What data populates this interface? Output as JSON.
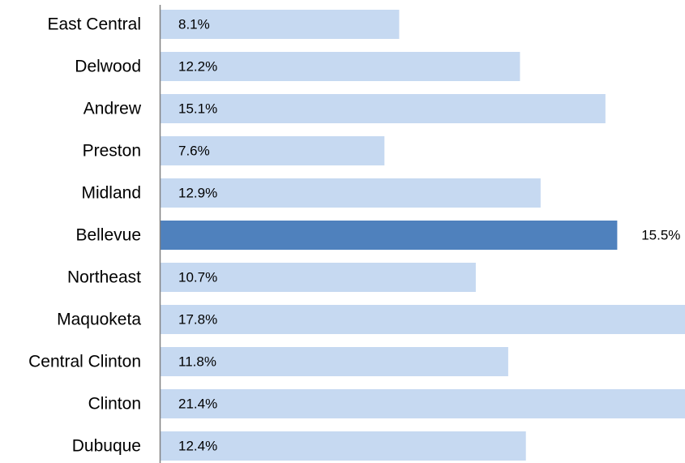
{
  "colors": {
    "bar": "#c6d9f1",
    "highlight": "#4f81bd",
    "axis": "#808080"
  },
  "chart_data": {
    "type": "bar",
    "orientation": "horizontal",
    "categories": [
      "East Central",
      "Delwood",
      "Andrew",
      "Preston",
      "Midland",
      "Bellevue",
      "Northeast",
      "Maquoketa",
      "Central Clinton",
      "Clinton",
      "Dubuque"
    ],
    "values": [
      8.1,
      12.2,
      15.1,
      7.6,
      12.9,
      15.5,
      10.7,
      17.8,
      11.8,
      21.4,
      12.4
    ],
    "data_labels": [
      "8.1%",
      "12.2%",
      "15.1%",
      "7.6%",
      "12.9%",
      "15.5%",
      "10.7%",
      "17.8%",
      "11.8%",
      "21.4%",
      "12.4%"
    ],
    "highlight": "Bellevue",
    "value_unit": "%",
    "xlim": [
      0,
      17.8
    ],
    "grid": false,
    "legend": false
  }
}
